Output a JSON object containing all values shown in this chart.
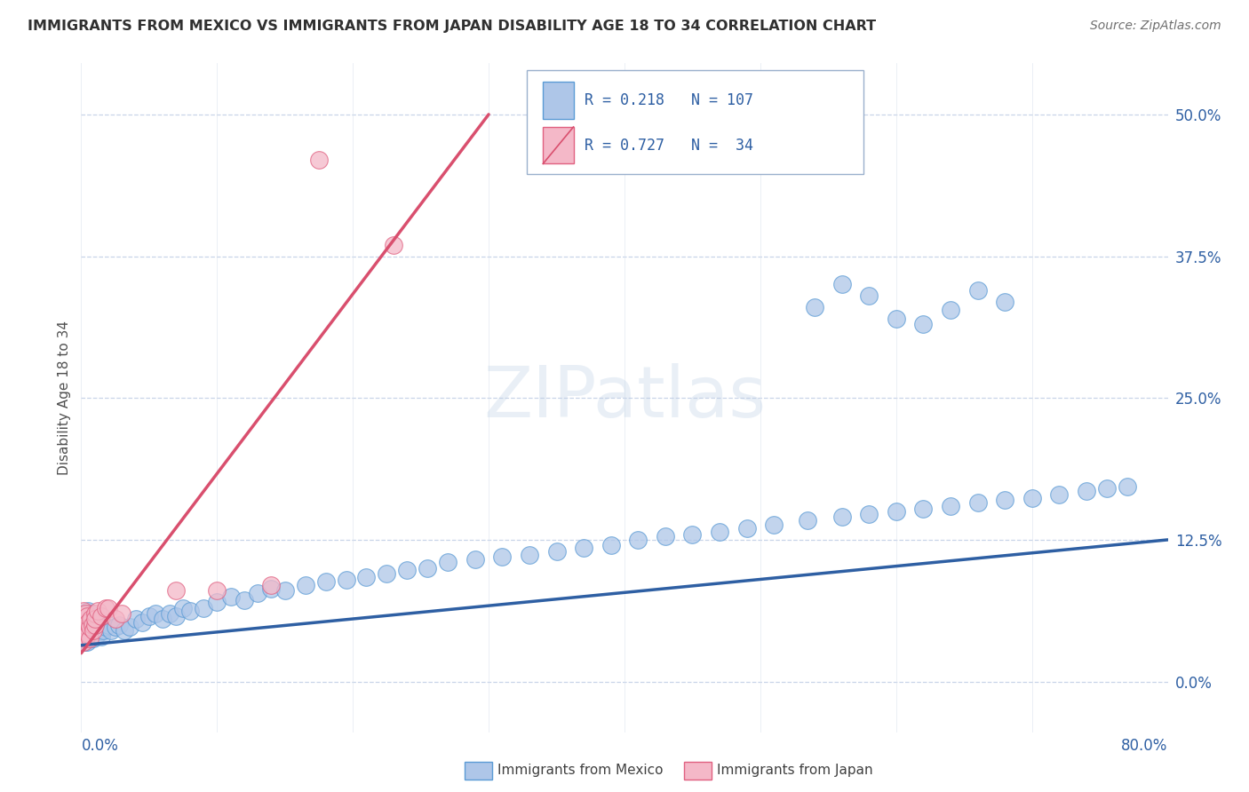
{
  "title": "IMMIGRANTS FROM MEXICO VS IMMIGRANTS FROM JAPAN DISABILITY AGE 18 TO 34 CORRELATION CHART",
  "source": "Source: ZipAtlas.com",
  "ylabel": "Disability Age 18 to 34",
  "yticks": [
    "0.0%",
    "12.5%",
    "25.0%",
    "37.5%",
    "50.0%"
  ],
  "ytick_vals": [
    0.0,
    0.125,
    0.25,
    0.375,
    0.5
  ],
  "xrange": [
    0.0,
    0.8
  ],
  "yrange": [
    -0.045,
    0.545
  ],
  "watermark": "ZIPatlas",
  "mexico_color": "#aec6e8",
  "mexico_edge": "#5b9bd5",
  "japan_color": "#f4b8c8",
  "japan_edge": "#e06080",
  "mexico_line_color": "#2e5fa3",
  "japan_line_color": "#d94f6e",
  "legend_text_color": "#2e5fa3",
  "title_color": "#303030",
  "source_color": "#707070",
  "R_mexico": 0.218,
  "N_mexico": 107,
  "R_japan": 0.727,
  "N_japan": 34,
  "mexico_trend_x0": 0.0,
  "mexico_trend_y0": 0.032,
  "mexico_trend_x1": 0.8,
  "mexico_trend_y1": 0.125,
  "japan_trend_x0": 0.0,
  "japan_trend_y0": 0.025,
  "japan_trend_x1": 0.3,
  "japan_trend_y1": 0.5,
  "mexico_x": [
    0.001,
    0.001,
    0.001,
    0.001,
    0.001,
    0.002,
    0.002,
    0.002,
    0.002,
    0.002,
    0.002,
    0.003,
    0.003,
    0.003,
    0.003,
    0.003,
    0.003,
    0.004,
    0.004,
    0.004,
    0.004,
    0.004,
    0.005,
    0.005,
    0.005,
    0.005,
    0.006,
    0.006,
    0.006,
    0.007,
    0.007,
    0.007,
    0.008,
    0.008,
    0.009,
    0.009,
    0.01,
    0.01,
    0.011,
    0.012,
    0.013,
    0.014,
    0.015,
    0.016,
    0.018,
    0.02,
    0.022,
    0.025,
    0.028,
    0.032,
    0.036,
    0.04,
    0.045,
    0.05,
    0.055,
    0.06,
    0.065,
    0.07,
    0.075,
    0.08,
    0.09,
    0.1,
    0.11,
    0.12,
    0.13,
    0.14,
    0.15,
    0.165,
    0.18,
    0.195,
    0.21,
    0.225,
    0.24,
    0.255,
    0.27,
    0.29,
    0.31,
    0.33,
    0.35,
    0.37,
    0.39,
    0.41,
    0.43,
    0.45,
    0.47,
    0.49,
    0.51,
    0.535,
    0.56,
    0.58,
    0.6,
    0.62,
    0.64,
    0.66,
    0.68,
    0.7,
    0.72,
    0.74,
    0.755,
    0.77,
    0.54,
    0.56,
    0.58,
    0.6,
    0.62,
    0.64,
    0.66,
    0.68
  ],
  "mexico_y": [
    0.045,
    0.055,
    0.06,
    0.04,
    0.05,
    0.038,
    0.048,
    0.058,
    0.035,
    0.045,
    0.055,
    0.038,
    0.048,
    0.058,
    0.035,
    0.045,
    0.055,
    0.04,
    0.05,
    0.06,
    0.035,
    0.045,
    0.038,
    0.048,
    0.055,
    0.062,
    0.04,
    0.05,
    0.06,
    0.038,
    0.048,
    0.058,
    0.04,
    0.05,
    0.038,
    0.048,
    0.04,
    0.05,
    0.045,
    0.042,
    0.048,
    0.052,
    0.04,
    0.045,
    0.048,
    0.05,
    0.045,
    0.048,
    0.05,
    0.045,
    0.048,
    0.055,
    0.052,
    0.058,
    0.06,
    0.055,
    0.06,
    0.058,
    0.065,
    0.062,
    0.065,
    0.07,
    0.075,
    0.072,
    0.078,
    0.082,
    0.08,
    0.085,
    0.088,
    0.09,
    0.092,
    0.095,
    0.098,
    0.1,
    0.105,
    0.108,
    0.11,
    0.112,
    0.115,
    0.118,
    0.12,
    0.125,
    0.128,
    0.13,
    0.132,
    0.135,
    0.138,
    0.142,
    0.145,
    0.148,
    0.15,
    0.152,
    0.155,
    0.158,
    0.16,
    0.162,
    0.165,
    0.168,
    0.17,
    0.172,
    0.33,
    0.35,
    0.34,
    0.32,
    0.315,
    0.328,
    0.345,
    0.335
  ],
  "japan_x": [
    0.001,
    0.001,
    0.001,
    0.002,
    0.002,
    0.002,
    0.002,
    0.003,
    0.003,
    0.003,
    0.003,
    0.004,
    0.004,
    0.005,
    0.005,
    0.006,
    0.006,
    0.007,
    0.008,
    0.009,
    0.01,
    0.01,
    0.01,
    0.012,
    0.015,
    0.018,
    0.02,
    0.025,
    0.03,
    0.07,
    0.1,
    0.14,
    0.175,
    0.23
  ],
  "japan_y": [
    0.04,
    0.055,
    0.048,
    0.035,
    0.045,
    0.058,
    0.062,
    0.04,
    0.05,
    0.06,
    0.038,
    0.048,
    0.058,
    0.042,
    0.052,
    0.038,
    0.048,
    0.055,
    0.05,
    0.045,
    0.05,
    0.06,
    0.055,
    0.062,
    0.058,
    0.065,
    0.065,
    0.055,
    0.06,
    0.08,
    0.08,
    0.085,
    0.46,
    0.385
  ]
}
